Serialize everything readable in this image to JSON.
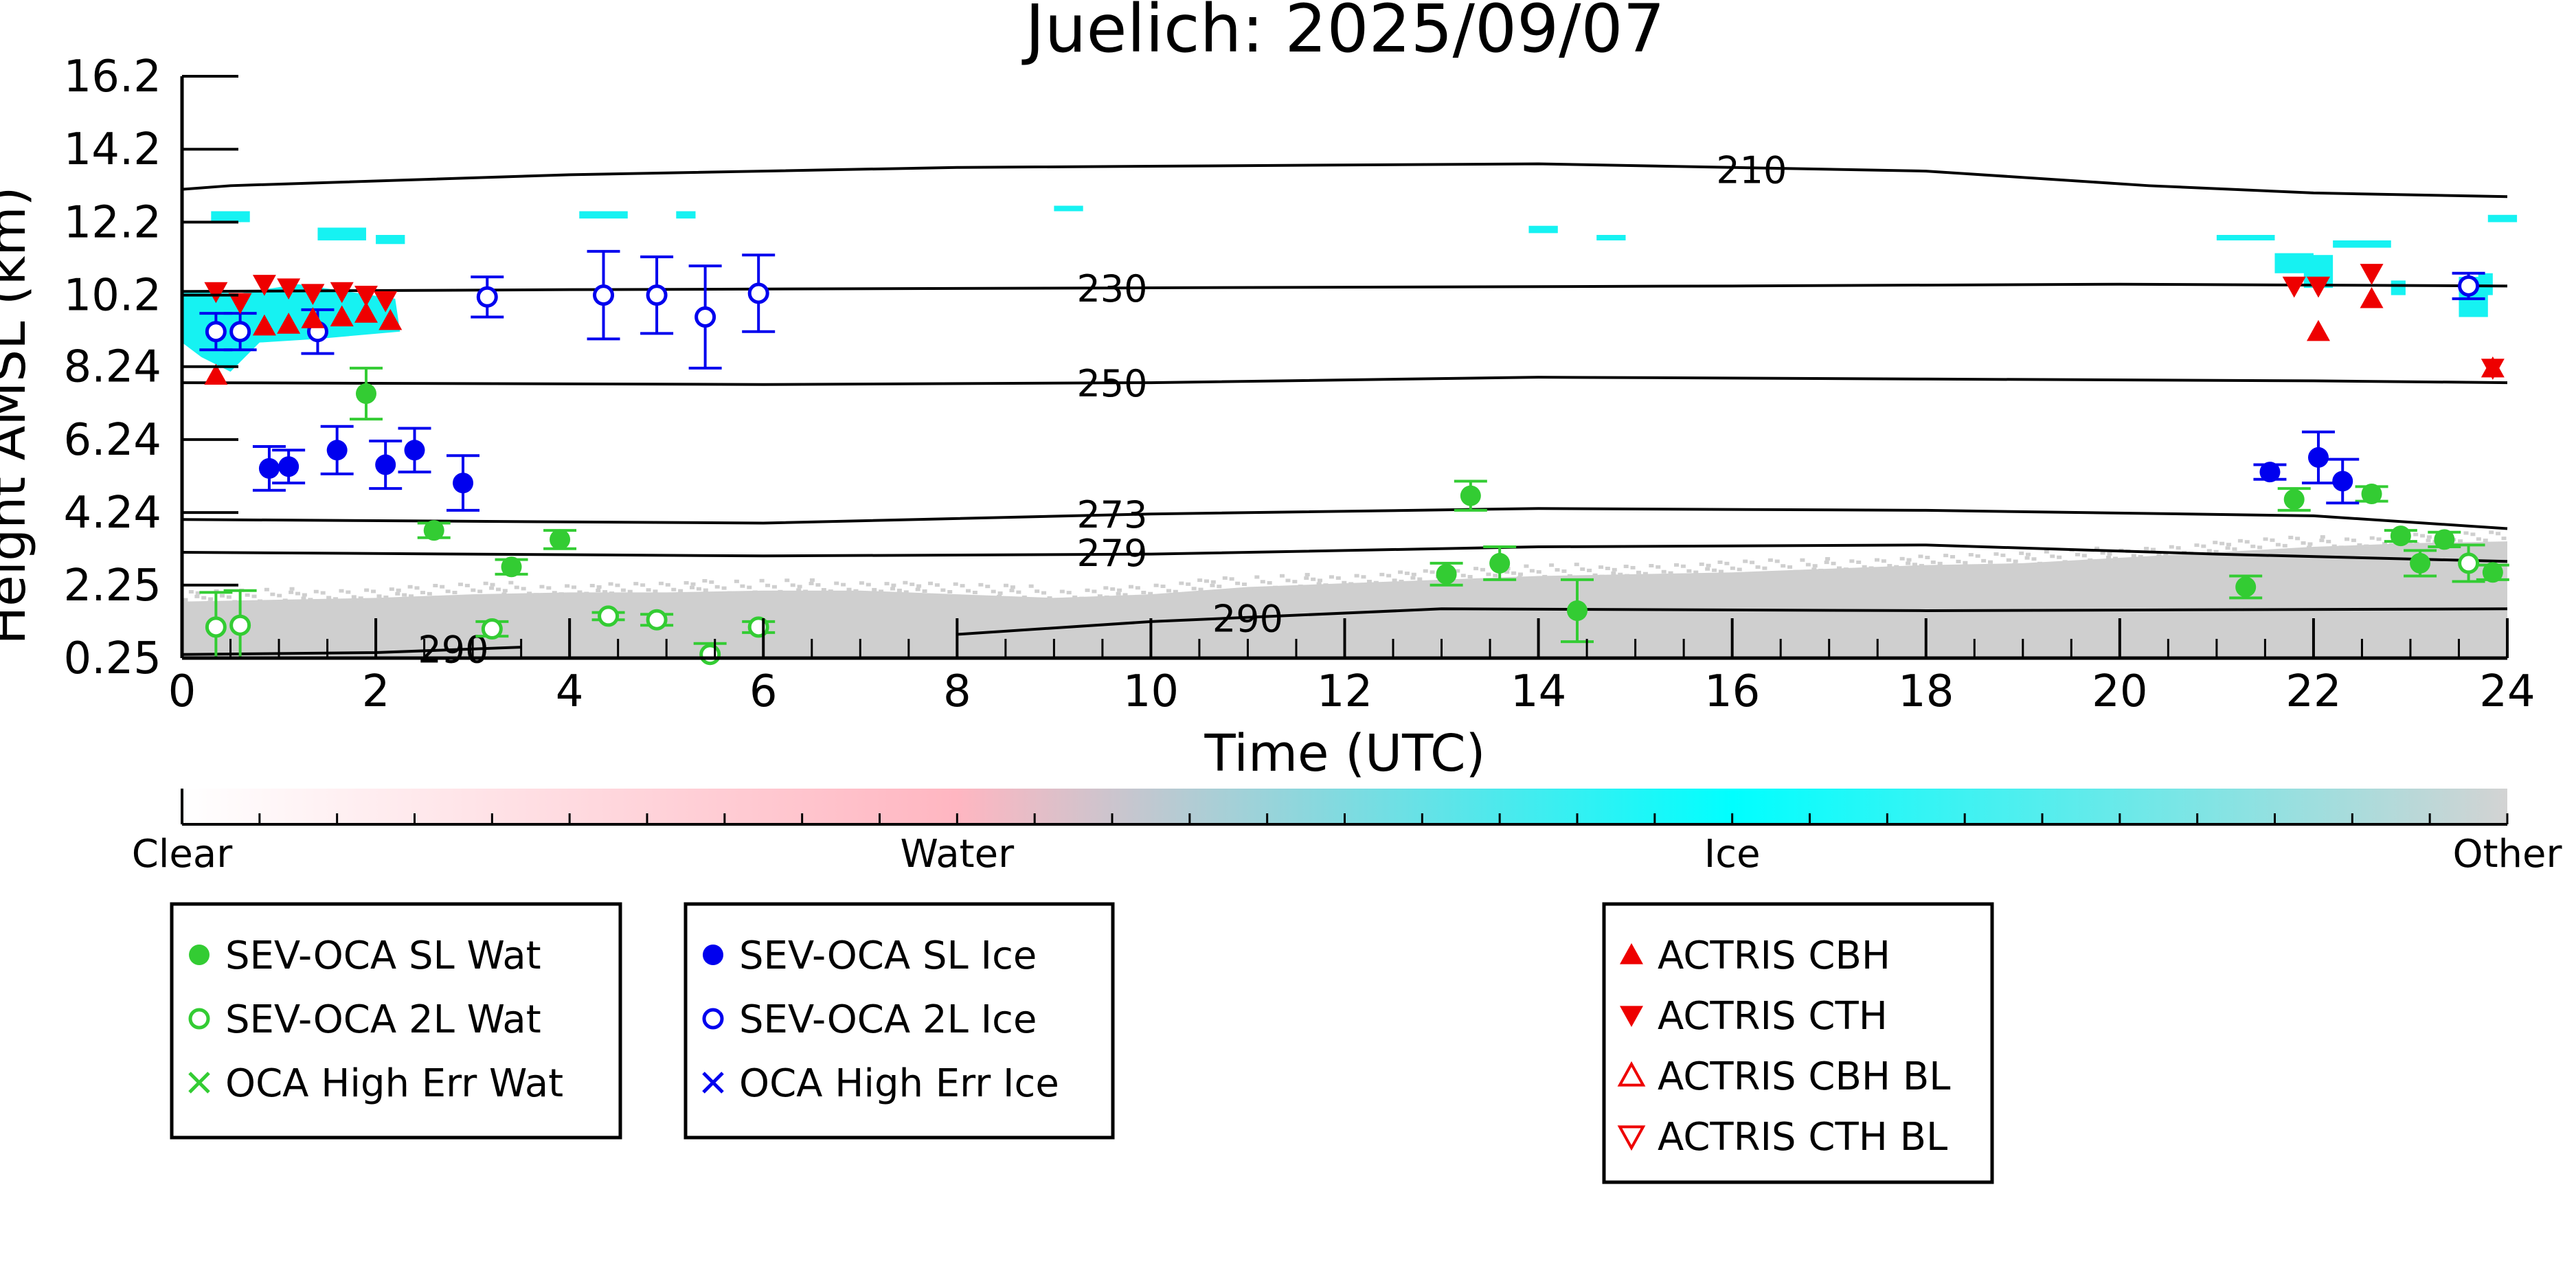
{
  "chart_data": {
    "type": "scatter",
    "title": "Juelich: 2025/09/07",
    "xlabel": "Time (UTC)",
    "ylabel": "Height AMSL (km)",
    "xlim": [
      0,
      24
    ],
    "x_ticks": [
      "0",
      "2",
      "4",
      "6",
      "8",
      "10",
      "12",
      "14",
      "16",
      "18",
      "20",
      "22",
      "24"
    ],
    "y_ticks": [
      "0.25",
      "2.25",
      "4.24",
      "6.24",
      "8.24",
      "10.2",
      "12.2",
      "14.2",
      "16.2"
    ],
    "ylim": [
      0.25,
      16.2
    ],
    "background": "cloud classification curtain with temperature isotherms (K)",
    "isotherms": [
      {
        "label": "210",
        "points": [
          [
            0,
            13.1
          ],
          [
            0.5,
            13.2
          ],
          [
            4,
            13.5
          ],
          [
            8,
            13.7
          ],
          [
            14,
            13.8
          ],
          [
            18,
            13.6
          ],
          [
            20.3,
            13.2
          ],
          [
            22,
            13.0
          ],
          [
            24,
            12.9
          ]
        ]
      },
      {
        "label": "230",
        "points": [
          [
            0,
            10.3
          ],
          [
            4,
            10.35
          ],
          [
            10,
            10.4
          ],
          [
            16,
            10.45
          ],
          [
            20,
            10.5
          ],
          [
            24,
            10.45
          ]
        ]
      },
      {
        "label": "250",
        "points": [
          [
            0,
            7.8
          ],
          [
            6,
            7.75
          ],
          [
            10,
            7.8
          ],
          [
            14,
            7.95
          ],
          [
            18,
            7.9
          ],
          [
            22,
            7.85
          ],
          [
            24,
            7.8
          ]
        ]
      },
      {
        "label": "273",
        "points": [
          [
            0,
            4.05
          ],
          [
            6,
            3.95
          ],
          [
            10,
            4.2
          ],
          [
            14,
            4.35
          ],
          [
            18,
            4.3
          ],
          [
            22,
            4.15
          ],
          [
            24,
            3.8
          ]
        ]
      },
      {
        "label": "279",
        "points": [
          [
            0,
            3.15
          ],
          [
            6,
            3.05
          ],
          [
            10,
            3.1
          ],
          [
            14,
            3.3
          ],
          [
            18,
            3.35
          ],
          [
            21,
            3.1
          ],
          [
            24,
            2.9
          ]
        ]
      },
      {
        "label": "290",
        "points": [
          [
            8,
            0.9
          ],
          [
            10,
            1.25
          ],
          [
            13,
            1.6
          ],
          [
            18,
            1.55
          ],
          [
            24,
            1.6
          ]
        ]
      },
      {
        "label": "290",
        "points": [
          [
            0,
            0.35
          ],
          [
            2,
            0.4
          ],
          [
            3.5,
            0.55
          ]
        ]
      }
    ],
    "series": [
      {
        "name": "SEV-OCA SL Wat",
        "marker": "filled-circle",
        "color": "#33cc33",
        "x": [
          1.9,
          2.6,
          3.4,
          3.9,
          13.05,
          13.3,
          13.6,
          14.4,
          21.3,
          21.8,
          22.6,
          22.9,
          23.1,
          23.35,
          23.85
        ],
        "y": [
          7.5,
          3.75,
          2.75,
          3.5,
          2.55,
          4.7,
          2.85,
          1.55,
          2.2,
          4.6,
          4.75,
          3.6,
          2.85,
          3.5,
          2.6
        ],
        "yerr": [
          0.7,
          0.2,
          0.2,
          0.25,
          0.3,
          0.4,
          0.45,
          0.85,
          0.3,
          0.3,
          0.2,
          0.15,
          0.35,
          0.2,
          0.2
        ]
      },
      {
        "name": "SEV-OCA 2L Wat",
        "marker": "open-circle",
        "color": "#33cc33",
        "x": [
          0.35,
          0.6,
          3.2,
          4.4,
          4.9,
          5.45,
          5.95,
          23.6
        ],
        "y": [
          1.1,
          1.15,
          1.05,
          1.4,
          1.3,
          0.35,
          1.1,
          2.85
        ],
        "yerr": [
          0.95,
          0.95,
          0.2,
          0.1,
          0.15,
          0.3,
          0.15,
          0.5
        ]
      },
      {
        "name": "OCA High Err Wat",
        "marker": "x",
        "color": "#33cc33",
        "x": [],
        "y": []
      },
      {
        "name": "SEV-OCA SL Ice",
        "marker": "filled-circle",
        "color": "#0000ee",
        "x": [
          0.9,
          1.1,
          1.6,
          2.1,
          2.4,
          2.9,
          21.55,
          22.05,
          22.3
        ],
        "y": [
          5.45,
          5.5,
          5.95,
          5.55,
          5.95,
          5.05,
          5.35,
          5.75,
          5.1
        ],
        "yerr": [
          0.6,
          0.45,
          0.65,
          0.65,
          0.6,
          0.75,
          0.2,
          0.7,
          0.6
        ]
      },
      {
        "name": "SEV-OCA 2L Ice",
        "marker": "open-circle",
        "color": "#0000ee",
        "x": [
          0.35,
          0.6,
          1.4,
          3.15,
          4.35,
          4.9,
          5.4,
          5.95,
          23.6
        ],
        "y": [
          9.2,
          9.2,
          9.2,
          10.15,
          10.2,
          10.2,
          9.6,
          10.25,
          10.45
        ],
        "yerr": [
          0.5,
          0.5,
          0.6,
          0.55,
          1.2,
          1.05,
          1.4,
          1.05,
          0.35
        ]
      },
      {
        "name": "OCA High Err Ice",
        "marker": "x",
        "color": "#0000ee",
        "x": [],
        "y": []
      },
      {
        "name": "ACTRIS CBH",
        "marker": "triangle-up",
        "color": "#ee0000",
        "x": [
          0.35,
          0.85,
          1.1,
          1.35,
          1.65,
          1.9,
          2.15,
          22.05,
          22.6,
          23.85
        ],
        "y": [
          8.0,
          9.35,
          9.4,
          9.55,
          9.6,
          9.7,
          9.5,
          9.2,
          10.1,
          8.2
        ]
      },
      {
        "name": "ACTRIS CTH",
        "marker": "triangle-down",
        "color": "#ee0000",
        "x": [
          0.35,
          0.6,
          0.85,
          1.1,
          1.35,
          1.65,
          1.9,
          2.1,
          21.8,
          22.05,
          22.6,
          23.85
        ],
        "y": [
          10.3,
          10.0,
          10.5,
          10.4,
          10.25,
          10.3,
          10.2,
          10.05,
          10.45,
          10.45,
          10.8,
          8.2
        ]
      },
      {
        "name": "ACTRIS CBH BL",
        "marker": "open-triangle-up",
        "color": "#ee0000",
        "x": [],
        "y": []
      },
      {
        "name": "ACTRIS CTH BL",
        "marker": "open-triangle-down",
        "color": "#ee0000",
        "x": [],
        "y": []
      }
    ],
    "colorbar": {
      "labels": [
        "Clear",
        "Water",
        "Ice",
        "Other"
      ],
      "colors": [
        "#ffffff",
        "#ffb6c1",
        "#00ffff",
        "#d3d3d3"
      ]
    },
    "legend_groups": [
      [
        "SEV-OCA SL Wat",
        "SEV-OCA 2L Wat",
        "OCA High Err Wat"
      ],
      [
        "SEV-OCA SL Ice",
        "SEV-OCA 2L Ice",
        "OCA High Err Ice"
      ],
      [
        "ACTRIS CBH",
        "ACTRIS CTH",
        "ACTRIS CBH BL",
        "ACTRIS CTH BL"
      ]
    ]
  }
}
